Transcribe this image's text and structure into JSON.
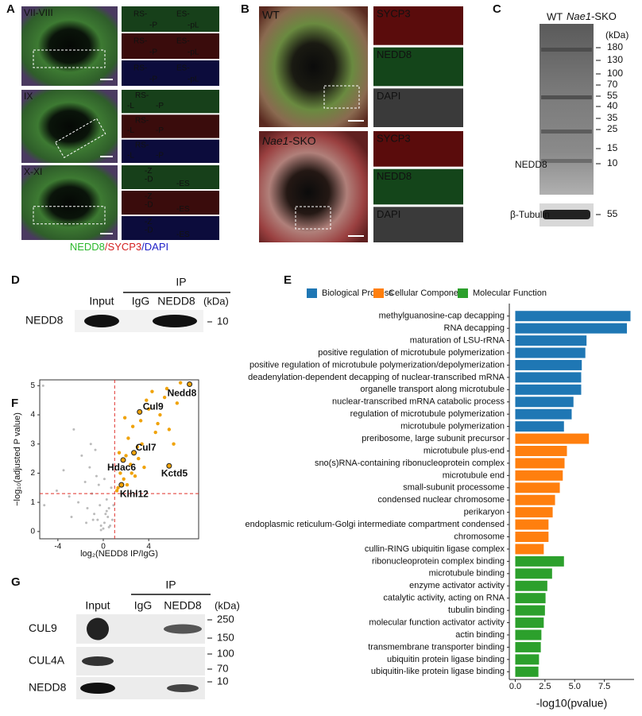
{
  "figure_labels": [
    "A",
    "B",
    "C",
    "D",
    "E",
    "F",
    "G"
  ],
  "panel_a": {
    "stages": [
      "VII-VIII",
      "IX",
      "X-XI"
    ],
    "inset_labels": [
      [
        "RS-",
        "ES-",
        "-P",
        "-pL"
      ],
      [
        "RS-",
        "-L",
        "-P"
      ],
      [
        "-Z",
        "-D",
        "-ES"
      ]
    ],
    "legend": [
      "NEDD8",
      "/SYCP3",
      "/DAPI"
    ]
  },
  "panel_b": {
    "wt": "WT",
    "sko": {
      "gene": "Nae1",
      "suffix": "-SKO"
    },
    "channels": [
      "SYCP3",
      "NEDD8",
      "DAPI"
    ]
  },
  "panel_c": {
    "wt": "WT",
    "sko": {
      "gene": "Nae1",
      "suffix": "-SKO"
    },
    "unit": "(kDa)",
    "markers": [
      180,
      130,
      100,
      70,
      55,
      40,
      35,
      25,
      15,
      10
    ],
    "protein": "NEDD8",
    "loading": "β-Tubulin",
    "loading_marker": 55
  },
  "panel_d": {
    "ip": "IP",
    "lanes": [
      "Input",
      "IgG",
      "NEDD8"
    ],
    "unit": "(kDa)",
    "protein": "NEDD8",
    "marker": 10
  },
  "panel_g": {
    "ip": "IP",
    "lanes": [
      "Input",
      "IgG",
      "NEDD8"
    ],
    "unit": "(kDa)",
    "rows": [
      {
        "protein": "CUL9",
        "markers": [
          250,
          150
        ]
      },
      {
        "protein": "CUL4A",
        "markers": [
          100,
          70
        ]
      },
      {
        "protein": "NEDD8",
        "markers": [
          10
        ]
      }
    ]
  },
  "chart_data": [
    {
      "type": "bar",
      "orientation": "horizontal",
      "xlabel": "-log10(pvalue)",
      "categories": [
        "methylguanosine-cap decapping",
        "RNA decapping",
        "maturation of LSU-rRNA",
        "positive regulation of microtubule polymerization",
        "positive regulation of microtubule polymerization/depolymerization",
        "deadenylation-dependent decapping of nuclear-transcribed mRNA",
        "organelle transport along microtubule",
        "nuclear-transcribed mRNA catabolic process",
        "regulation of microtubule polymerization",
        "microtubule polymerization",
        "preribosome, large subunit precursor",
        "microtubule plus-end",
        "sno(s)RNA-containing ribonucleoprotein complex",
        "microtubule end",
        "small-subunit processome",
        "condensed nuclear chromosome",
        "perikaryon",
        "endoplasmic reticulum-Golgi intermediate compartment condensed",
        "chromosome",
        "cullin-RING ubiquitin ligase complex",
        "ribonucleoprotein complex binding",
        "microtubule binding",
        "enzyme activator activity",
        "catalytic activity, acting on RNA",
        "tubulin binding",
        "molecular function activator activity",
        "actin binding",
        "transmembrane transporter binding",
        "ubiquitin protein ligase binding",
        "ubiquitin-like protein ligase binding"
      ],
      "category_colors": [
        "#111",
        "#111",
        "#111",
        "#111",
        "#111",
        "#111",
        "#111",
        "#111",
        "#111",
        "#111",
        "#111",
        "#111",
        "#111",
        "#111",
        "#111",
        "#111",
        "#111",
        "#111",
        "#111",
        "#d62728",
        "#111",
        "#111",
        "#111",
        "#111",
        "#111",
        "#111",
        "#111",
        "#111",
        "#d62728",
        "#d62728"
      ],
      "series": [
        {
          "name": "Biological Process",
          "color": "#1f77b4",
          "values": [
            9.7,
            9.4,
            6.0,
            5.9,
            5.6,
            5.55,
            5.55,
            4.9,
            4.75,
            4.1,
            null,
            null,
            null,
            null,
            null,
            null,
            null,
            null,
            null,
            null,
            null,
            null,
            null,
            null,
            null,
            null,
            null,
            null,
            null,
            null
          ]
        },
        {
          "name": "Cellular Component",
          "color": "#ff7f0e",
          "values": [
            null,
            null,
            null,
            null,
            null,
            null,
            null,
            null,
            null,
            null,
            6.2,
            4.35,
            4.15,
            4.0,
            3.75,
            3.35,
            3.15,
            2.8,
            2.8,
            2.4,
            null,
            null,
            null,
            null,
            null,
            null,
            null,
            null,
            null,
            null
          ]
        },
        {
          "name": "Molecular Function",
          "color": "#2ca02c",
          "values": [
            null,
            null,
            null,
            null,
            null,
            null,
            null,
            null,
            null,
            null,
            null,
            null,
            null,
            null,
            null,
            null,
            null,
            null,
            null,
            null,
            4.1,
            3.1,
            2.7,
            2.55,
            2.5,
            2.4,
            2.2,
            2.15,
            2.0,
            1.95
          ]
        }
      ],
      "xlim": [
        -0.5,
        10
      ],
      "xticks": [
        {
          "value": 0,
          "label": "0.0"
        },
        {
          "value": 2.5,
          "label": "2.5"
        },
        {
          "value": 5,
          "label": "5.0"
        },
        {
          "value": 7.5,
          "label": "7.5"
        }
      ],
      "legend": "top"
    },
    {
      "type": "scatter",
      "xlabel": "log₂(NEDD8 IP/IgG)",
      "ylabel": "−log₁₀(adjusted P value)",
      "xlim": [
        -5.6,
        8.4
      ],
      "ylim": [
        -0.25,
        5.2
      ],
      "xticks": [
        -4,
        0,
        4
      ],
      "yticks": [
        0,
        1,
        2,
        3,
        4,
        5
      ],
      "vline": 1,
      "hline": 1.3,
      "threshold_color": "#e0302a",
      "series": [
        {
          "color": "#bbbbbb",
          "x": [
            -5.2,
            -4.1,
            -3.5,
            -3,
            -2.6,
            -2.2,
            -1.9,
            -1.6,
            -1.4,
            -1.2,
            -1,
            -0.8,
            -0.6,
            -0.5,
            -0.3,
            -0.2,
            0,
            0.1,
            0.2,
            0.3,
            0.4,
            0.5,
            0.6,
            0.7,
            0.8,
            0.9,
            -1.1,
            -0.7,
            -0.4,
            0.3,
            -2.8,
            -1.5,
            -0.9,
            0.5,
            -0.2,
            0.1,
            -5.3
          ],
          "y": [
            0.9,
            1.4,
            2.1,
            1.2,
            3.5,
            1.0,
            2.6,
            1.7,
            0.8,
            2.2,
            1.3,
            0.6,
            1.9,
            0.4,
            0.9,
            0.2,
            0.1,
            0.3,
            0.6,
            1.1,
            0.5,
            0.8,
            0.2,
            1.5,
            0.4,
            0.9,
            3.0,
            2.8,
            1.6,
            0.7,
            0.5,
            0.3,
            0.4,
            0.15,
            0.05,
            1.8,
            5.0
          ]
        },
        {
          "color": "#f0a30a",
          "x": [
            1.3,
            1.5,
            1.8,
            2.0,
            2.2,
            2.4,
            2.6,
            2.8,
            3.0,
            3.3,
            3.6,
            4.0,
            4.3,
            4.6,
            5.0,
            5.4,
            5.8,
            6.2,
            6.5,
            1.4,
            1.9,
            2.5,
            3.1,
            3.8,
            4.8,
            5.6,
            6.8,
            1.2,
            2.1,
            3.4
          ],
          "y": [
            1.5,
            2.0,
            1.8,
            2.6,
            3.2,
            2.3,
            3.6,
            1.9,
            2.9,
            3.8,
            2.2,
            4.2,
            4.8,
            3.4,
            4.0,
            4.6,
            3.5,
            3.0,
            4.4,
            2.7,
            3.9,
            2.0,
            2.5,
            4.5,
            3.7,
            4.9,
            5.1,
            1.4,
            1.6,
            3.0
          ]
        }
      ],
      "annotations": [
        {
          "text": "Nedd8",
          "x": 7.6,
          "y": 5.05
        },
        {
          "text": "Cul9",
          "x": 3.2,
          "y": 4.1
        },
        {
          "text": "Cul7",
          "x": 2.7,
          "y": 2.7
        },
        {
          "text": "Hdac6",
          "x": 1.75,
          "y": 2.45
        },
        {
          "text": "Kctd5",
          "x": 5.8,
          "y": 2.25
        },
        {
          "text": "Klhl12",
          "x": 1.6,
          "y": 1.6
        }
      ]
    }
  ]
}
